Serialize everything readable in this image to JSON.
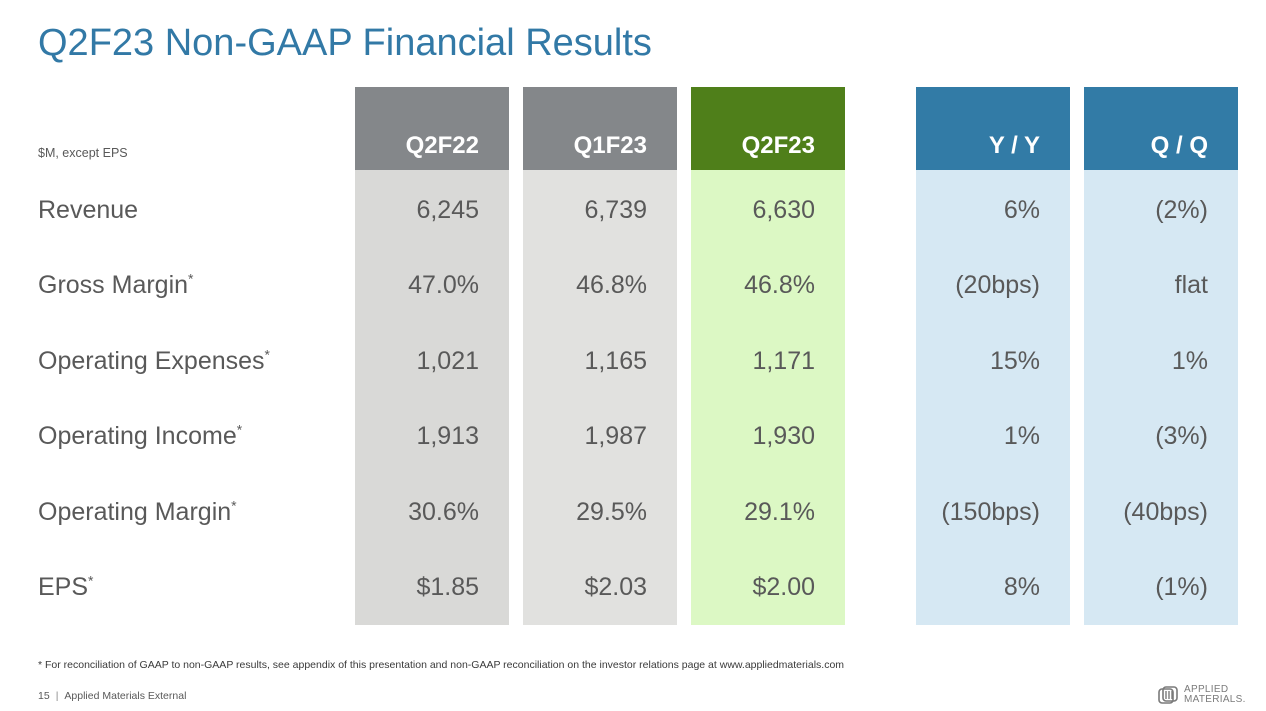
{
  "title": "Q2F23 Non-GAAP Financial Results",
  "units_note": "$M, except EPS",
  "colors": {
    "title": "#3279a6",
    "q2f22_header": "#84878a",
    "q2f22_body": "#d9d9d7",
    "q1f23_header": "#84878a",
    "q1f23_body": "#e1e1df",
    "q2f23_header": "#4f7f1a",
    "q2f23_body": "#dcf8c4",
    "change_header": "#327ba6",
    "change_body": "#d6e8f3"
  },
  "columns": [
    "Q2F22",
    "Q1F23",
    "Q2F23",
    "Y / Y",
    "Q / Q"
  ],
  "rows": [
    {
      "label": "Revenue",
      "mark": "",
      "values": [
        "6,245",
        "6,739",
        "6,630",
        "6%",
        "(2%)"
      ]
    },
    {
      "label": "Gross Margin",
      "mark": "*",
      "values": [
        "47.0%",
        "46.8%",
        "46.8%",
        "(20bps)",
        "flat"
      ]
    },
    {
      "label": "Operating Expenses",
      "mark": "*",
      "values": [
        "1,021",
        "1,165",
        "1,171",
        "15%",
        "1%"
      ]
    },
    {
      "label": "Operating Income",
      "mark": "*",
      "values": [
        "1,913",
        "1,987",
        "1,930",
        "1%",
        "(3%)"
      ]
    },
    {
      "label": "Operating Margin",
      "mark": "*",
      "values": [
        "30.6%",
        "29.5%",
        "29.1%",
        "(150bps)",
        "(40bps)"
      ]
    },
    {
      "label": "EPS",
      "mark": "*",
      "values": [
        "$1.85",
        "$2.03",
        "$2.00",
        "8%",
        "(1%)"
      ]
    }
  ],
  "footnote": "* For reconciliation of GAAP to non-GAAP results, see appendix of this presentation and non-GAAP reconciliation on the investor relations page at www.appliedmaterials.com",
  "footer": {
    "page": "15",
    "separator": "|",
    "label": "Applied Materials External"
  },
  "logo": {
    "line1": "APPLIED",
    "line2": "MATERIALS",
    "mark": "."
  }
}
